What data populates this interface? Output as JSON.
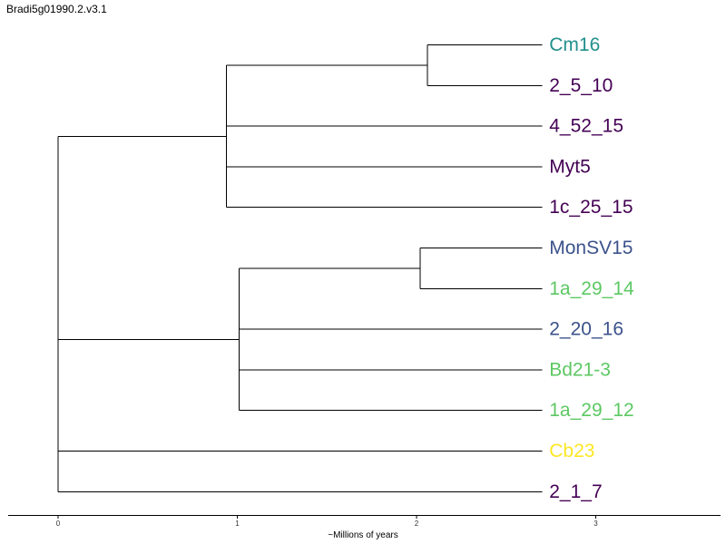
{
  "title": "Bradi5g01990.2.v3.1",
  "axis": {
    "label": "~Millions of years",
    "ticks": [
      0,
      1,
      2,
      3
    ],
    "range": [
      -0.27,
      3.69
    ]
  },
  "colors": {
    "teal": "#21908d",
    "purple": "#440154",
    "slate": "#3b528b",
    "green": "#5dc863",
    "yellow": "#fde725"
  },
  "tree": {
    "id": "root",
    "x": 0,
    "children": [
      {
        "id": "clade-a",
        "x": 0.94,
        "children": [
          {
            "id": "clade-a1",
            "x": 2.06,
            "children": [
              {
                "label": "Cm16",
                "x": 2.7,
                "color": "#21908d"
              },
              {
                "label": "2_5_10",
                "x": 2.7,
                "color": "#440154"
              }
            ]
          },
          {
            "label": "4_52_15",
            "x": 2.7,
            "color": "#440154"
          },
          {
            "label": "Myt5",
            "x": 2.7,
            "color": "#440154"
          },
          {
            "label": "1c_25_15",
            "x": 2.7,
            "color": "#440154"
          }
        ]
      },
      {
        "id": "clade-b",
        "x": 1.01,
        "children": [
          {
            "id": "clade-b1",
            "x": 2.02,
            "children": [
              {
                "label": "MonSV15",
                "x": 2.7,
                "color": "#3b528b"
              },
              {
                "label": "1a_29_14",
                "x": 2.7,
                "color": "#5dc863"
              }
            ]
          },
          {
            "label": "2_20_16",
            "x": 2.7,
            "color": "#3b528b"
          },
          {
            "label": "Bd21-3",
            "x": 2.7,
            "color": "#5dc863"
          },
          {
            "label": "1a_29_12",
            "x": 2.7,
            "color": "#5dc863"
          }
        ]
      },
      {
        "label": "Cb23",
        "x": 2.7,
        "color": "#fde725"
      },
      {
        "label": "2_1_7",
        "x": 2.7,
        "color": "#440154"
      }
    ]
  }
}
